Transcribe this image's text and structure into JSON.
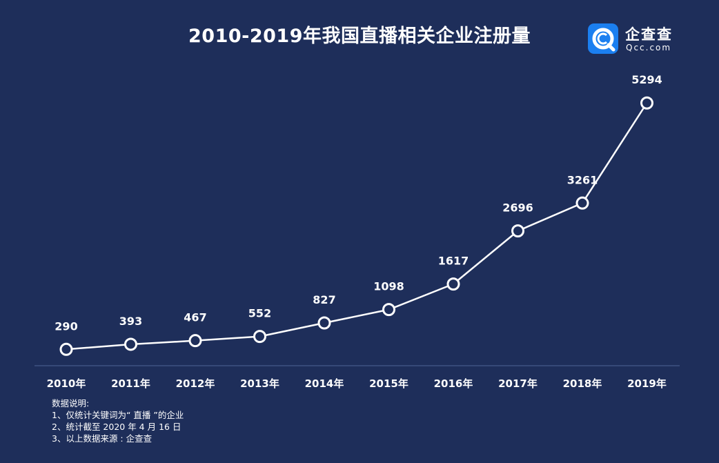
{
  "brand": {
    "cn": "企查查",
    "en": "Qcc.com",
    "accent": "#1b7ff0"
  },
  "colors": {
    "background": "#1e2e5a",
    "line": "#ffffff",
    "axis": "#3e5282"
  },
  "chart_data": {
    "type": "line",
    "title": "2010-2019年我国直播相关企业注册量",
    "categories": [
      "2010年",
      "2011年",
      "2012年",
      "2013年",
      "2014年",
      "2015年",
      "2016年",
      "2017年",
      "2018年",
      "2019年"
    ],
    "values": [
      290,
      393,
      467,
      552,
      827,
      1098,
      1617,
      2696,
      3261,
      5294
    ],
    "data_labels": [
      "290",
      "393",
      "467",
      "552",
      "827",
      "1098",
      "1617",
      "2696",
      "3261",
      "5294"
    ],
    "xlabel": "",
    "ylabel": "",
    "ylim": [
      0,
      5900
    ],
    "grid": false,
    "legend": "none"
  },
  "notes": {
    "heading": "数据说明:",
    "lines": [
      "1、仅统计关键词为“ 直播 ”的企业",
      "2、统计截至 2020 年 4 月 16 日",
      "3、以上数据来源 : 企查查"
    ]
  }
}
